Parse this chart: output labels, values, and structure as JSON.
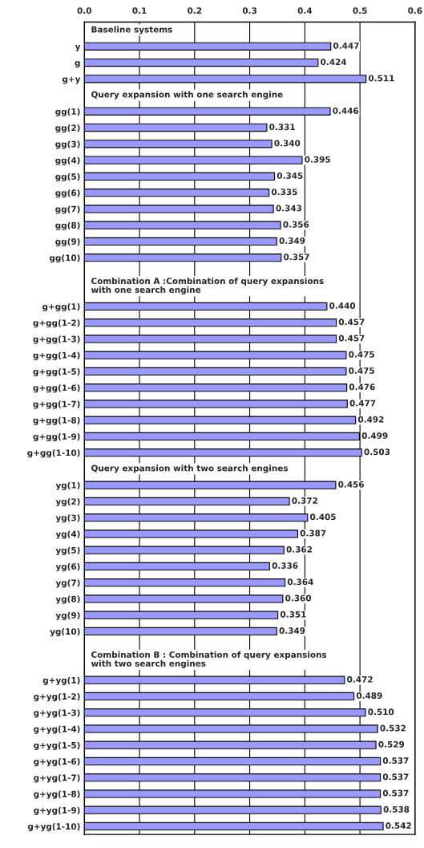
{
  "chart_data": {
    "type": "bar",
    "orientation": "horizontal",
    "categories": [
      null,
      "y",
      "g",
      "g+y",
      null,
      "gg(1)",
      "gg(2)",
      "gg(3)",
      "gg(4)",
      "gg(5)",
      "gg(6)",
      "gg(7)",
      "gg(8)",
      "gg(9)",
      "gg(10)",
      null,
      null,
      "g+gg(1)",
      "g+gg(1-2)",
      "g+gg(1-3)",
      "g+gg(1-4)",
      "g+gg(1-5)",
      "g+gg(1-6)",
      "g+gg(1-7)",
      "g+gg(1-8)",
      "g+gg(1-9)",
      "g+gg(1-10)",
      null,
      "yg(1)",
      "yg(2)",
      "yg(3)",
      "yg(4)",
      "yg(5)",
      "yg(6)",
      "yg(7)",
      "yg(8)",
      "yg(9)",
      "yg(10)",
      null,
      null,
      "g+yg(1)",
      "g+yg(1-2)",
      "g+yg(1-3)",
      "g+yg(1-4)",
      "g+yg(1-5)",
      "g+yg(1-6)",
      "g+yg(1-7)",
      "g+yg(1-8)",
      "g+yg(1-9)",
      "g+yg(1-10)"
    ],
    "values": [
      null,
      0.447,
      0.424,
      0.511,
      null,
      0.446,
      0.331,
      0.34,
      0.395,
      0.345,
      0.335,
      0.343,
      0.356,
      0.349,
      0.357,
      null,
      null,
      0.44,
      0.457,
      0.457,
      0.475,
      0.475,
      0.476,
      0.477,
      0.492,
      0.499,
      0.503,
      null,
      0.456,
      0.372,
      0.405,
      0.387,
      0.362,
      0.336,
      0.364,
      0.36,
      0.351,
      0.349,
      null,
      null,
      0.472,
      0.489,
      0.51,
      0.532,
      0.529,
      0.537,
      0.537,
      0.537,
      0.538,
      0.542
    ],
    "value_labels": [
      null,
      "0.447",
      "0.424",
      "0.511",
      null,
      "0.446",
      "0.331",
      "0.340",
      "0.395",
      "0.345",
      "0.335",
      "0.343",
      "0.356",
      "0.349",
      "0.357",
      null,
      null,
      "0.440",
      "0.457",
      "0.457",
      "0.475",
      "0.475",
      "0.476",
      "0.477",
      "0.492",
      "0.499",
      "0.503",
      null,
      "0.456",
      "0.372",
      "0.405",
      "0.387",
      "0.362",
      "0.336",
      "0.364",
      "0.360",
      "0.351",
      "0.349",
      null,
      null,
      "0.472",
      "0.489",
      "0.510",
      "0.532",
      "0.529",
      "0.537",
      "0.537",
      "0.537",
      "0.538",
      "0.542"
    ],
    "color": "#9999ff",
    "xlim": [
      0,
      0.6
    ],
    "xticks": [
      {
        "value": 0,
        "label": "0.0"
      },
      0.1,
      0.2,
      0.3,
      0.4,
      0.5,
      0.6
    ],
    "grid": "x",
    "annotations": [
      "Baseline systems",
      "Query expansion with one search engine",
      "Combination A :Combination of query expansions\nwith one search engine",
      "Query expansion with two search engines",
      "Combination B : Combination of query expansions\nwith two search engines"
    ]
  }
}
